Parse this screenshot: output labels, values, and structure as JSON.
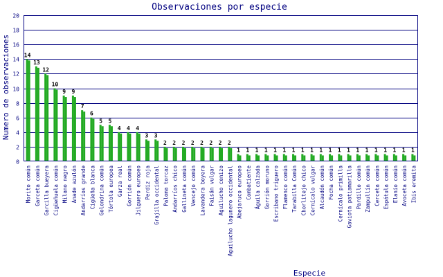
{
  "chart_data": {
    "type": "bar",
    "title": "Observaciones por especie",
    "xlabel": "Especie",
    "ylabel": "Numero de observaciones",
    "ylim": [
      0,
      20
    ],
    "yticks": [
      0,
      2,
      4,
      6,
      8,
      10,
      12,
      14,
      16,
      18,
      20
    ],
    "grid": true,
    "legend": "none",
    "colors": {
      "bar": "#22aa22",
      "bar_shadow": "#000000",
      "grid": "#000080",
      "text": "#000080",
      "plot_background": "#ffffff",
      "page_background": "#ffffff"
    },
    "categories": [
      "Morito común",
      "Garceta común",
      "Garcilla bueyera",
      "Cigüeñuela común",
      "Milano negro",
      "Ánade azulón",
      "Andarríos grande",
      "Cigüeña blanca",
      "Golondrina común",
      "Tórtola europea",
      "Garza real",
      "Gorrión común",
      "Jilguero europeo",
      "Perdiz roja",
      "Grajilla occidental",
      "Paloma torcaz",
      "Andarríos chico",
      "Gallineta común",
      "Vencejo común",
      "Lavandera boyera",
      "Faisán vulgar",
      "Aguilucho cenizo",
      "Aguilucho lagunero occidental",
      "Abejaruco europeo",
      "Combatiente",
      "Águila calzada",
      "Gorrión moruno",
      "Escribano triguero",
      "Flamenco común",
      "Tarabilla Común",
      "Chorlitejo chico",
      "Cernícalo vulgar",
      "Alcaudón común",
      "Focha común",
      "Cernícalo primilla",
      "Gaviota patiamarilla",
      "Pardillo común",
      "Zampullín común",
      "Cerceta común",
      "Espátula común",
      "Elanio común",
      "Avoceta común",
      "Ibis eremita"
    ],
    "values": [
      14,
      13,
      12,
      10,
      9,
      9,
      7,
      6,
      5,
      5,
      4,
      4,
      4,
      3,
      3,
      2,
      2,
      2,
      2,
      2,
      2,
      2,
      2,
      1,
      1,
      1,
      1,
      1,
      1,
      1,
      1,
      1,
      1,
      1,
      1,
      1,
      1,
      1,
      1,
      1,
      1,
      1,
      1
    ],
    "data_labels": [
      "14",
      "13",
      "12",
      "10",
      "9",
      "9",
      "7",
      "6",
      "5",
      "5",
      "4",
      "4",
      "4",
      "3",
      "3",
      "2",
      "2",
      "2",
      "2",
      "2",
      "2",
      "2",
      "2",
      "1",
      "1",
      "1",
      "1",
      "1",
      "1",
      "1",
      "1",
      "1",
      "1",
      "1",
      "1",
      "1",
      "1",
      "1",
      "1",
      "1",
      "1",
      "1",
      "1"
    ]
  }
}
